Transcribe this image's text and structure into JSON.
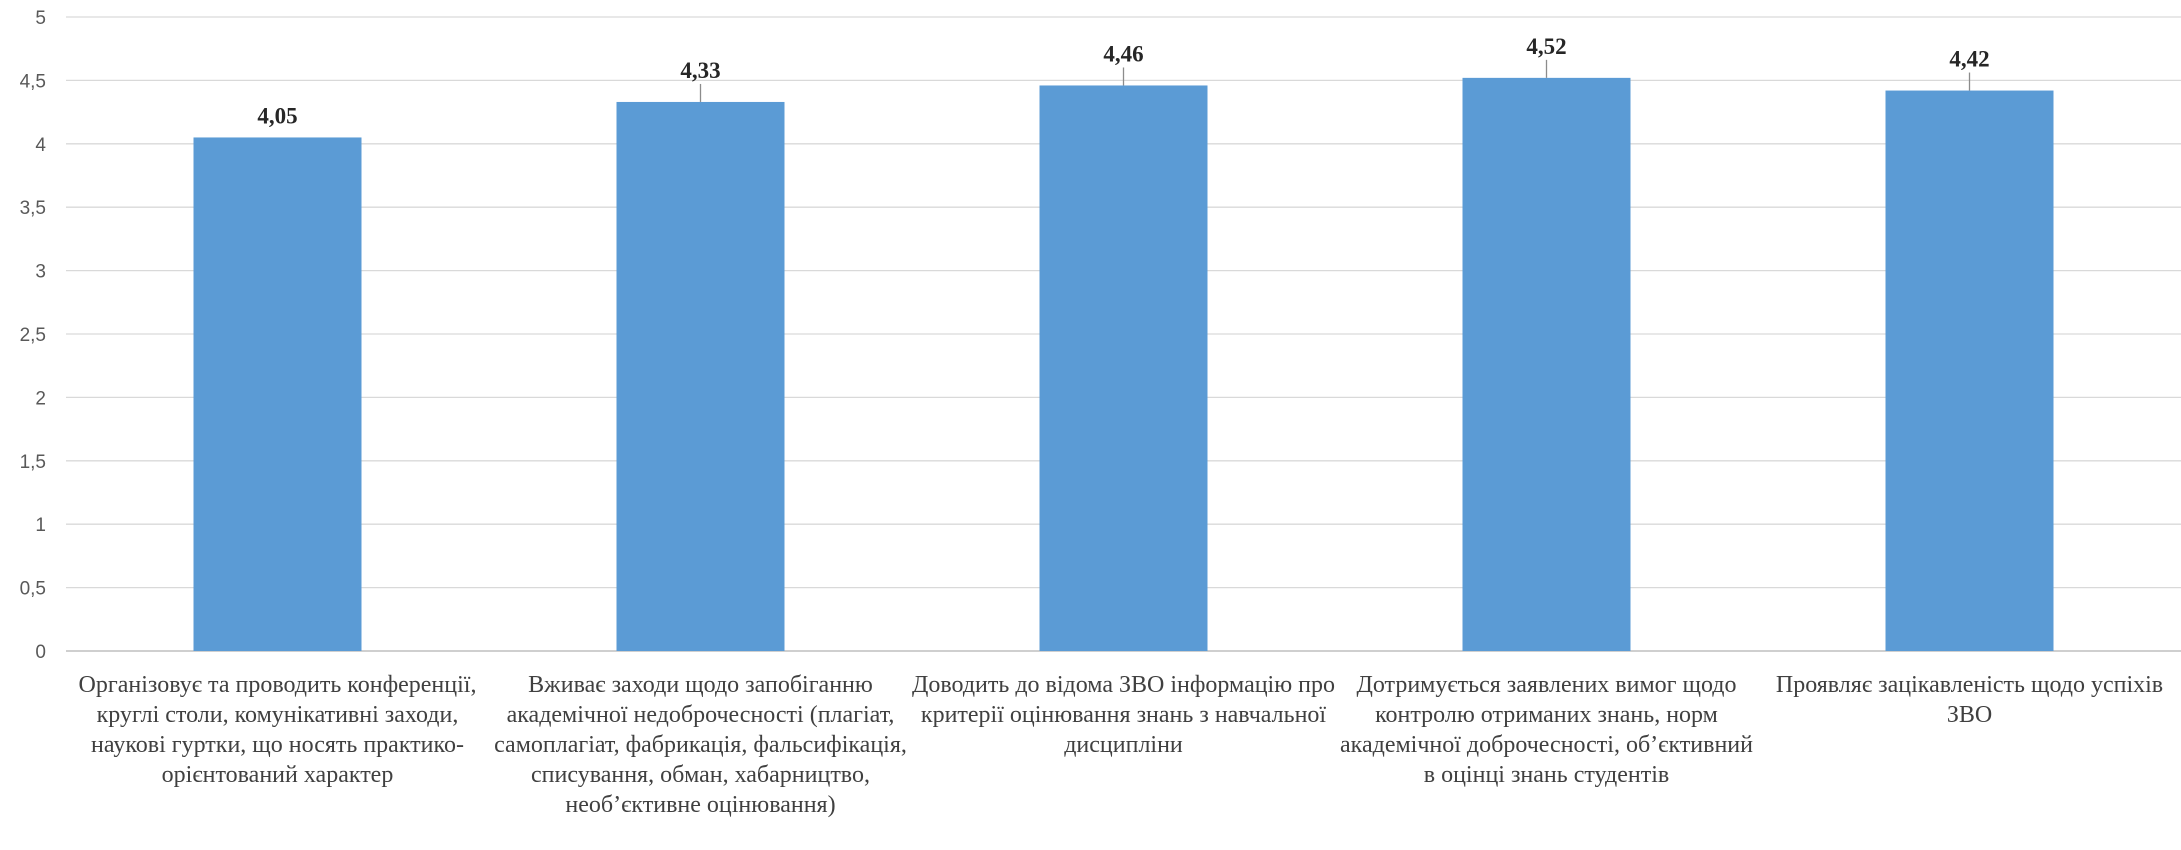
{
  "chart_data": {
    "type": "bar",
    "title": "",
    "xlabel": "",
    "ylabel": "",
    "ylim": [
      0,
      5
    ],
    "yticks": [
      0,
      0.5,
      1,
      1.5,
      2,
      2.5,
      3,
      3.5,
      4,
      4.5,
      5
    ],
    "ytick_labels": [
      "0",
      "0,5",
      "1",
      "1,5",
      "2",
      "2,5",
      "3",
      "3,5",
      "4",
      "4,5",
      "5"
    ],
    "grid": true,
    "bar_color": "#5b9bd5",
    "categories": [
      "Організовує та проводить конференції, круглі столи, комунікативні заходи, наукові гуртки, що носять практико-орієнтований характер",
      "Вживає заходи щодо запобіганню академічної недоброчесності (плагіат, самоплагіат, фабрикація, фальсифікація, списування, обман, хабарництво, необ’єктивне оцінювання)",
      "Доводить до відома ЗВО інформацію про критерії оцінювання знань з навчальної дисципліни",
      "Дотримується заявлених вимог щодо контролю отриманих знань, норм академічної доброчесності, об’єктивний в оцінці знань студентів",
      "Проявляє зацікавленість щодо успіхів ЗВО"
    ],
    "values": [
      4.05,
      4.33,
      4.46,
      4.52,
      4.42
    ],
    "data_labels": [
      "4,05",
      "4,33",
      "4,46",
      "4,52",
      "4,42"
    ]
  }
}
